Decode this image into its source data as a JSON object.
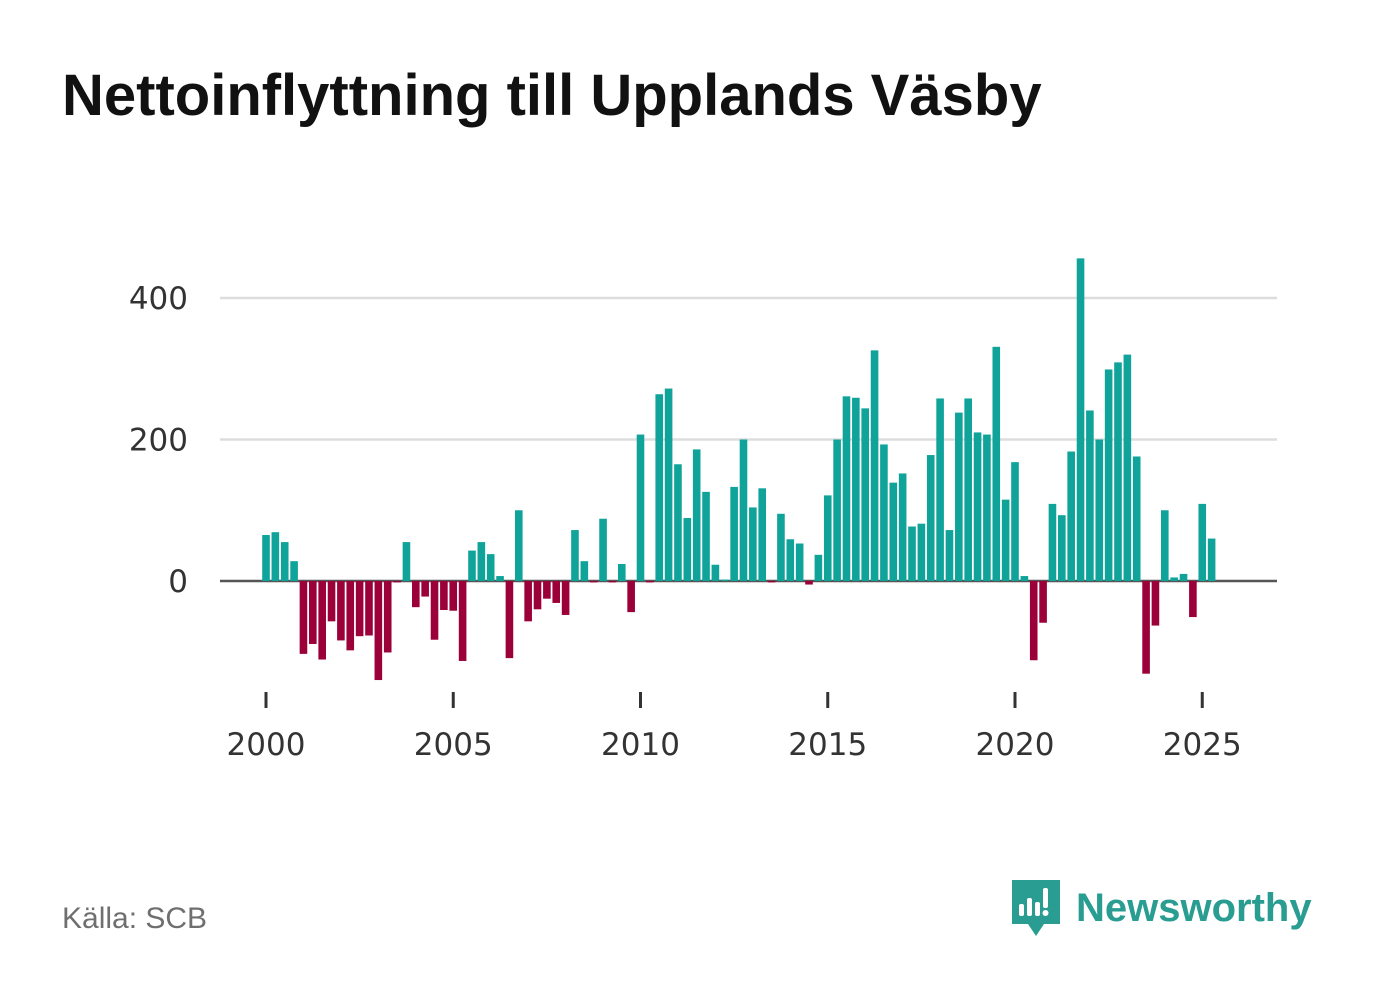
{
  "chart_data": {
    "type": "bar",
    "title": "Nettoinflyttning till Upplands Väsby",
    "source": "Källa: SCB",
    "brand": "Newsworthy",
    "xlabel": "",
    "ylabel": "",
    "ylim": [
      -170,
      460
    ],
    "yticks": [
      0,
      200,
      400
    ],
    "ytick_labels": [
      "0",
      "200",
      "400"
    ],
    "xticks": [
      2000,
      2005,
      2010,
      2015,
      2020,
      2025
    ],
    "xtick_labels": [
      "2000",
      "2005",
      "2010",
      "2015",
      "2020",
      "2025"
    ],
    "x_start": 2000.0,
    "x_step": 0.25,
    "positive_color": "#0fa39a",
    "negative_color": "#9b0039",
    "grid": true,
    "values": [
      65,
      69,
      55,
      28,
      -103,
      -89,
      -111,
      -57,
      -84,
      -98,
      -78,
      -77,
      -140,
      -101,
      -2,
      55,
      -37,
      -22,
      -83,
      -41,
      -42,
      -113,
      43,
      55,
      38,
      7,
      -109,
      100,
      -57,
      -40,
      -25,
      -31,
      -48,
      72,
      28,
      -2,
      88,
      -2,
      24,
      -44,
      207,
      -2,
      264,
      272,
      165,
      89,
      186,
      126,
      23,
      2,
      133,
      200,
      104,
      131,
      -2,
      95,
      59,
      53,
      -5,
      37,
      121,
      200,
      261,
      259,
      244,
      326,
      193,
      139,
      152,
      77,
      81,
      178,
      258,
      72,
      238,
      258,
      210,
      207,
      331,
      115,
      168,
      7,
      -112,
      -59,
      109,
      93,
      183,
      456,
      241,
      200,
      299,
      309,
      320,
      176,
      -131,
      -63,
      100,
      5,
      10,
      -51,
      109,
      60
    ]
  }
}
